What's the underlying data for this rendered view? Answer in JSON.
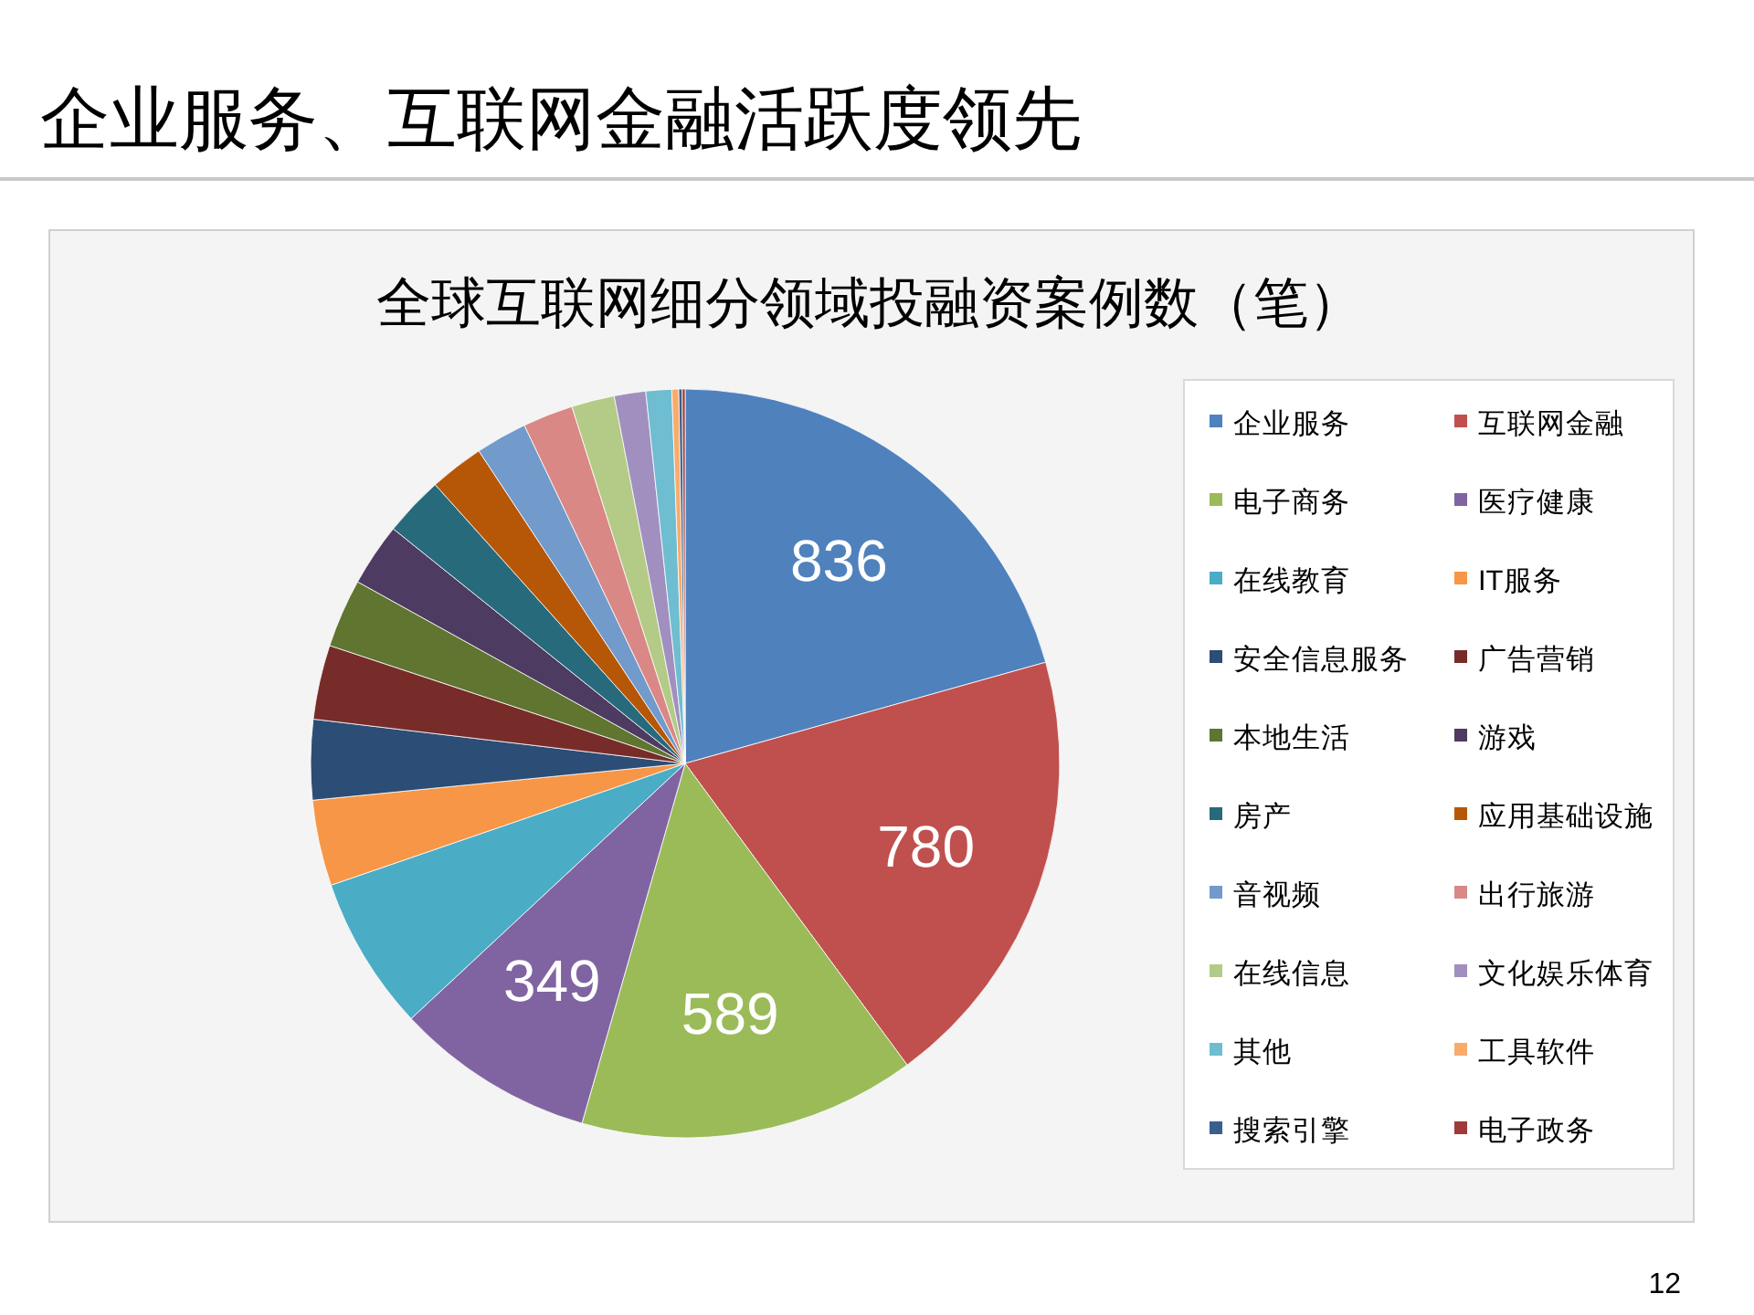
{
  "chart_data": {
    "type": "pie",
    "title": "企业服务、互联网金融活跃度领先",
    "subtitle": "全球互联网细分领域投融资案例数（笔）",
    "categories": [
      "企业服务",
      "互联网金融",
      "电子商务",
      "医疗健康",
      "在线教育",
      "IT服务",
      "安全信息服务",
      "广告营销",
      "本地生活",
      "游戏",
      "房产",
      "应用基础设施",
      "音视频",
      "出行旅游",
      "在线信息",
      "文化娱乐体育",
      "其他",
      "工具软件",
      "搜索引擎",
      "电子政务"
    ],
    "values": [
      836,
      780,
      589,
      349,
      270,
      150,
      140,
      130,
      120,
      110,
      105,
      95,
      90,
      88,
      75,
      55,
      45,
      12,
      6,
      5
    ],
    "value_labels": [
      "836",
      "780",
      "589",
      "349",
      null,
      null,
      null,
      null,
      null,
      null,
      null,
      null,
      null,
      null,
      null,
      null,
      null,
      null,
      null,
      null
    ],
    "colors": [
      "#4f81bd",
      "#c0504d",
      "#9bbb59",
      "#8064a2",
      "#4bacc6",
      "#f79646",
      "#2c4d75",
      "#772c2a",
      "#5f7530",
      "#4d3b62",
      "#276a7c",
      "#b65708",
      "#729aca",
      "#d98886",
      "#b3cb86",
      "#a18fc0",
      "#6fbdd1",
      "#f9ab6b",
      "#3a5f8e",
      "#9e3b39"
    ],
    "legend": "right",
    "annotations": [
      "12"
    ]
  }
}
